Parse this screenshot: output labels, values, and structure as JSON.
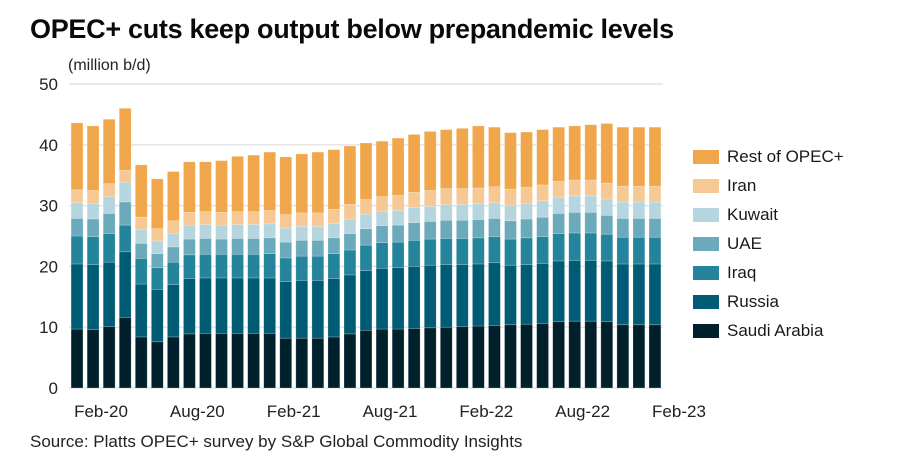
{
  "chart_data": {
    "type": "bar",
    "stacked": true,
    "title": "OPEC+ cuts keep output below prepandemic levels",
    "ylabel": "(million b/d)",
    "xlabel": "",
    "ylim": [
      0,
      50
    ],
    "yticks": [
      0,
      10,
      20,
      30,
      40,
      50
    ],
    "xtick_labels": [
      "Feb-20",
      "Aug-20",
      "Feb-21",
      "Aug-21",
      "Feb-22",
      "Aug-22",
      "Feb-23"
    ],
    "xtick_every": 6,
    "grid": true,
    "legend_position": "right",
    "source": "Source: Platts OPEC+ survey by S&P Global Commodity Insights",
    "categories": [
      "Feb-20",
      "Mar-20",
      "Apr-20",
      "May-20",
      "Jun-20",
      "Jul-20",
      "Aug-20",
      "Sep-20",
      "Oct-20",
      "Nov-20",
      "Dec-20",
      "Jan-21",
      "Feb-21",
      "Mar-21",
      "Apr-21",
      "May-21",
      "Jun-21",
      "Jul-21",
      "Aug-21",
      "Sep-21",
      "Oct-21",
      "Nov-21",
      "Dec-21",
      "Jan-22",
      "Feb-22",
      "Mar-22",
      "Apr-22",
      "May-22",
      "Jun-22",
      "Jul-22",
      "Aug-22",
      "Sep-22",
      "Oct-22",
      "Nov-22",
      "Dec-22",
      "Jan-23",
      "Feb-23"
    ],
    "series": [
      {
        "name": "Saudi Arabia",
        "color": "#00212C",
        "values": [
          9.7,
          9.6,
          10.1,
          11.6,
          8.4,
          7.6,
          8.4,
          8.9,
          9.0,
          9.0,
          9.0,
          9.0,
          9.0,
          8.2,
          8.2,
          8.2,
          8.4,
          8.9,
          9.5,
          9.7,
          9.7,
          9.8,
          9.9,
          10.0,
          10.1,
          10.2,
          10.3,
          10.4,
          10.5,
          10.6,
          10.9,
          11.0,
          11.0,
          10.9,
          10.4,
          10.4,
          10.4
        ]
      },
      {
        "name": "Russia",
        "color": "#005B74",
        "values": [
          10.7,
          10.7,
          10.6,
          10.8,
          8.7,
          8.6,
          8.6,
          9.1,
          9.1,
          9.1,
          9.1,
          9.1,
          9.1,
          9.3,
          9.5,
          9.5,
          9.6,
          9.7,
          9.8,
          10.0,
          10.1,
          10.2,
          10.3,
          10.3,
          10.2,
          10.2,
          10.3,
          9.8,
          9.8,
          9.9,
          10.0,
          10.0,
          10.0,
          10.0,
          10.0,
          10.0,
          10.0
        ]
      },
      {
        "name": "Iraq",
        "color": "#24849B",
        "values": [
          4.6,
          4.6,
          4.7,
          4.4,
          4.2,
          3.6,
          3.7,
          3.9,
          3.9,
          3.9,
          3.9,
          3.9,
          4.0,
          3.9,
          4.0,
          4.0,
          4.1,
          4.1,
          4.2,
          4.2,
          4.2,
          4.3,
          4.3,
          4.3,
          4.3,
          4.3,
          4.3,
          4.3,
          4.4,
          4.4,
          4.5,
          4.5,
          4.5,
          4.4,
          4.4,
          4.4,
          4.4
        ]
      },
      {
        "name": "UAE",
        "color": "#6AAABB",
        "values": [
          2.9,
          2.9,
          3.3,
          3.8,
          2.5,
          2.3,
          2.5,
          2.6,
          2.6,
          2.5,
          2.6,
          2.6,
          2.6,
          2.6,
          2.6,
          2.6,
          2.6,
          2.7,
          2.7,
          2.8,
          2.8,
          2.9,
          2.9,
          3.0,
          3.0,
          3.0,
          3.0,
          3.0,
          3.1,
          3.2,
          3.3,
          3.4,
          3.4,
          3.1,
          3.1,
          3.1,
          3.1
        ]
      },
      {
        "name": "Kuwait",
        "color": "#B6D6DF",
        "values": [
          2.6,
          2.6,
          2.8,
          3.2,
          2.3,
          2.1,
          2.2,
          2.3,
          2.3,
          2.3,
          2.3,
          2.3,
          2.3,
          2.3,
          2.3,
          2.3,
          2.4,
          2.4,
          2.4,
          2.4,
          2.4,
          2.5,
          2.5,
          2.6,
          2.6,
          2.6,
          2.6,
          2.6,
          2.6,
          2.7,
          2.7,
          2.7,
          2.7,
          2.7,
          2.7,
          2.7,
          2.7
        ]
      },
      {
        "name": "Iran",
        "color": "#F6C893",
        "values": [
          2.1,
          2.1,
          2.1,
          2.0,
          2.0,
          2.0,
          2.1,
          2.1,
          2.1,
          2.1,
          2.1,
          2.1,
          2.2,
          2.2,
          2.2,
          2.2,
          2.3,
          2.4,
          2.4,
          2.4,
          2.5,
          2.5,
          2.6,
          2.6,
          2.6,
          2.6,
          2.6,
          2.6,
          2.6,
          2.6,
          2.6,
          2.6,
          2.6,
          2.6,
          2.6,
          2.6,
          2.6
        ]
      },
      {
        "name": "Rest of OPEC+",
        "color": "#F0A64A",
        "values": [
          11.0,
          10.6,
          10.6,
          10.2,
          8.6,
          8.2,
          8.1,
          8.3,
          8.2,
          8.5,
          9.1,
          9.3,
          9.6,
          9.5,
          9.7,
          10.0,
          9.8,
          9.6,
          9.3,
          9.1,
          9.4,
          9.5,
          9.7,
          9.7,
          9.9,
          10.2,
          9.8,
          9.3,
          9.1,
          9.1,
          8.9,
          8.9,
          9.1,
          9.8,
          9.7,
          9.7,
          9.7
        ]
      }
    ]
  }
}
